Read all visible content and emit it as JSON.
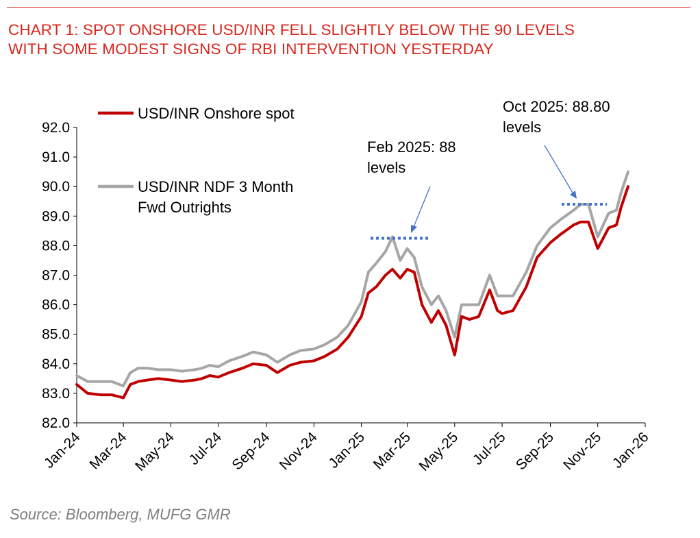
{
  "title": {
    "line1": "CHART 1: SPOT ONSHORE USD/INR FELL SLIGHTLY BELOW THE 90 LEVELS",
    "line2": "WITH SOME MODEST SIGNS OF RBI INTERVENTION YESTERDAY"
  },
  "source": "Source: Bloomberg, MUFG GMR",
  "colors": {
    "title": "#d9261c",
    "spot": "#c00000",
    "ndf": "#a6a6a6",
    "dotted": "#4472c4",
    "arrow": "#4472c4"
  },
  "chart_data": {
    "type": "line",
    "title": "",
    "xlabel": "",
    "ylabel": "",
    "ylim": [
      82.0,
      92.0
    ],
    "y_ticks": [
      "82.0",
      "83.0",
      "84.0",
      "85.0",
      "86.0",
      "87.0",
      "88.0",
      "89.0",
      "90.0",
      "91.0",
      "92.0"
    ],
    "x_ticks": [
      "Jan-24",
      "Mar-24",
      "May-24",
      "Jul-24",
      "Sep-24",
      "Nov-24",
      "Jan-25",
      "Mar-25",
      "May-25",
      "Jul-25",
      "Sep-25",
      "Nov-25",
      "Jan-26"
    ],
    "legend": [
      "USD/INR Onshore spot",
      "USD/INR NDF 3 Month Fwd Outrights"
    ],
    "legend_lines": {
      "spot": [
        "USD/INR Onshore spot"
      ],
      "ndf": [
        "USD/INR NDF 3 Month",
        "Fwd Outrights"
      ]
    },
    "series": [
      {
        "name": "USD/INR Onshore spot",
        "x": [
          "2024-01-01",
          "2024-01-15",
          "2024-02-01",
          "2024-02-15",
          "2024-03-01",
          "2024-03-10",
          "2024-03-20",
          "2024-04-01",
          "2024-04-15",
          "2024-05-01",
          "2024-05-15",
          "2024-06-01",
          "2024-06-10",
          "2024-06-20",
          "2024-07-01",
          "2024-07-15",
          "2024-08-01",
          "2024-08-15",
          "2024-09-01",
          "2024-09-15",
          "2024-10-01",
          "2024-10-15",
          "2024-11-01",
          "2024-11-15",
          "2024-12-01",
          "2024-12-15",
          "2025-01-01",
          "2025-01-10",
          "2025-01-20",
          "2025-02-01",
          "2025-02-10",
          "2025-02-20",
          "2025-03-01",
          "2025-03-10",
          "2025-03-20",
          "2025-04-01",
          "2025-04-10",
          "2025-04-20",
          "2025-05-01",
          "2025-05-10",
          "2025-05-20",
          "2025-06-01",
          "2025-06-15",
          "2025-06-25",
          "2025-07-01",
          "2025-07-15",
          "2025-08-01",
          "2025-08-15",
          "2025-09-01",
          "2025-09-15",
          "2025-10-01",
          "2025-10-10",
          "2025-10-20",
          "2025-11-01",
          "2025-11-15",
          "2025-11-25",
          "2025-12-01",
          "2025-12-10"
        ],
        "values": [
          83.3,
          83.0,
          82.95,
          82.95,
          82.85,
          83.3,
          83.4,
          83.45,
          83.5,
          83.45,
          83.4,
          83.45,
          83.5,
          83.6,
          83.55,
          83.7,
          83.85,
          84.0,
          83.95,
          83.7,
          83.95,
          84.05,
          84.1,
          84.25,
          84.5,
          84.9,
          85.6,
          86.4,
          86.6,
          87.0,
          87.2,
          86.9,
          87.2,
          87.1,
          86.0,
          85.4,
          85.8,
          85.3,
          84.3,
          85.6,
          85.5,
          85.6,
          86.5,
          85.8,
          85.7,
          85.8,
          86.6,
          87.6,
          88.1,
          88.4,
          88.7,
          88.8,
          88.8,
          87.9,
          88.6,
          88.7,
          89.3,
          90.0
        ]
      },
      {
        "name": "USD/INR NDF 3 Month Fwd Outrights",
        "x": [
          "2024-01-01",
          "2024-01-15",
          "2024-02-01",
          "2024-02-15",
          "2024-03-01",
          "2024-03-10",
          "2024-03-20",
          "2024-04-01",
          "2024-04-15",
          "2024-05-01",
          "2024-05-15",
          "2024-06-01",
          "2024-06-10",
          "2024-06-20",
          "2024-07-01",
          "2024-07-15",
          "2024-08-01",
          "2024-08-15",
          "2024-09-01",
          "2024-09-15",
          "2024-10-01",
          "2024-10-15",
          "2024-11-01",
          "2024-11-15",
          "2024-12-01",
          "2024-12-15",
          "2025-01-01",
          "2025-01-10",
          "2025-01-20",
          "2025-02-01",
          "2025-02-10",
          "2025-02-20",
          "2025-03-01",
          "2025-03-10",
          "2025-03-20",
          "2025-04-01",
          "2025-04-10",
          "2025-04-20",
          "2025-05-01",
          "2025-05-10",
          "2025-05-20",
          "2025-06-01",
          "2025-06-15",
          "2025-06-25",
          "2025-07-01",
          "2025-07-15",
          "2025-08-01",
          "2025-08-15",
          "2025-09-01",
          "2025-09-15",
          "2025-10-01",
          "2025-10-10",
          "2025-10-20",
          "2025-11-01",
          "2025-11-15",
          "2025-11-25",
          "2025-12-01",
          "2025-12-10"
        ],
        "values": [
          83.6,
          83.4,
          83.4,
          83.4,
          83.25,
          83.7,
          83.85,
          83.85,
          83.8,
          83.8,
          83.75,
          83.8,
          83.85,
          83.95,
          83.9,
          84.1,
          84.25,
          84.4,
          84.3,
          84.05,
          84.3,
          84.45,
          84.5,
          84.65,
          84.9,
          85.3,
          86.1,
          87.1,
          87.4,
          87.8,
          88.3,
          87.5,
          87.9,
          87.6,
          86.6,
          86.0,
          86.3,
          85.8,
          84.9,
          86.0,
          86.0,
          86.0,
          87.0,
          86.3,
          86.3,
          86.3,
          87.1,
          88.0,
          88.6,
          88.9,
          89.2,
          89.4,
          89.4,
          88.3,
          89.1,
          89.2,
          89.8,
          90.5
        ]
      }
    ],
    "annotations": [
      {
        "text_lines": [
          "Feb 2025: 88",
          "levels"
        ],
        "reference_level": 88.25
      },
      {
        "text_lines": [
          "Oct 2025: 88.80",
          "levels"
        ],
        "reference_level": 89.4
      }
    ]
  }
}
